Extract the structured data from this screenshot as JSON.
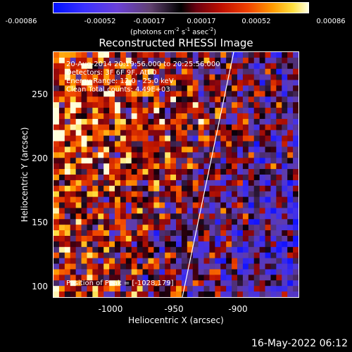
{
  "colorbar": {
    "ticks": [
      "-0.00086",
      "-0.00052",
      "-0.00017",
      "0.00017",
      "0.00052",
      "0.00086"
    ],
    "units_prefix": "(photons cm",
    "units_exp1": "-2",
    "units_mid": " s",
    "units_exp2": "-1",
    "units_mid2": " asec",
    "units_exp3": "-2",
    "units_suffix": ")"
  },
  "title": "Reconstructed RHESSI Image",
  "info": {
    "time": "20-Aug-2014 20:19:56.000 to 20:25:56.000",
    "detectors": "Detectors: 3F 6F 9F, Att 0",
    "energy": "Energy Range: 12.0 - 25.0 keV",
    "clean": "Clean    Total counts: 4.49E+03",
    "peak": "Position of Peak = [-1028,179]"
  },
  "axes": {
    "xlabel": "Heliocentric X (arcsec)",
    "ylabel": "Heliocentric Y (arcsec)",
    "xticks": [
      "-1000",
      "-950",
      "-900"
    ],
    "yticks": [
      "250",
      "200",
      "150",
      "100"
    ]
  },
  "footer_date": "16-May-2022 06:12",
  "colors": {
    "background": "#000000",
    "foreground": "#ffffff",
    "limb_line": "#ffffff"
  }
}
